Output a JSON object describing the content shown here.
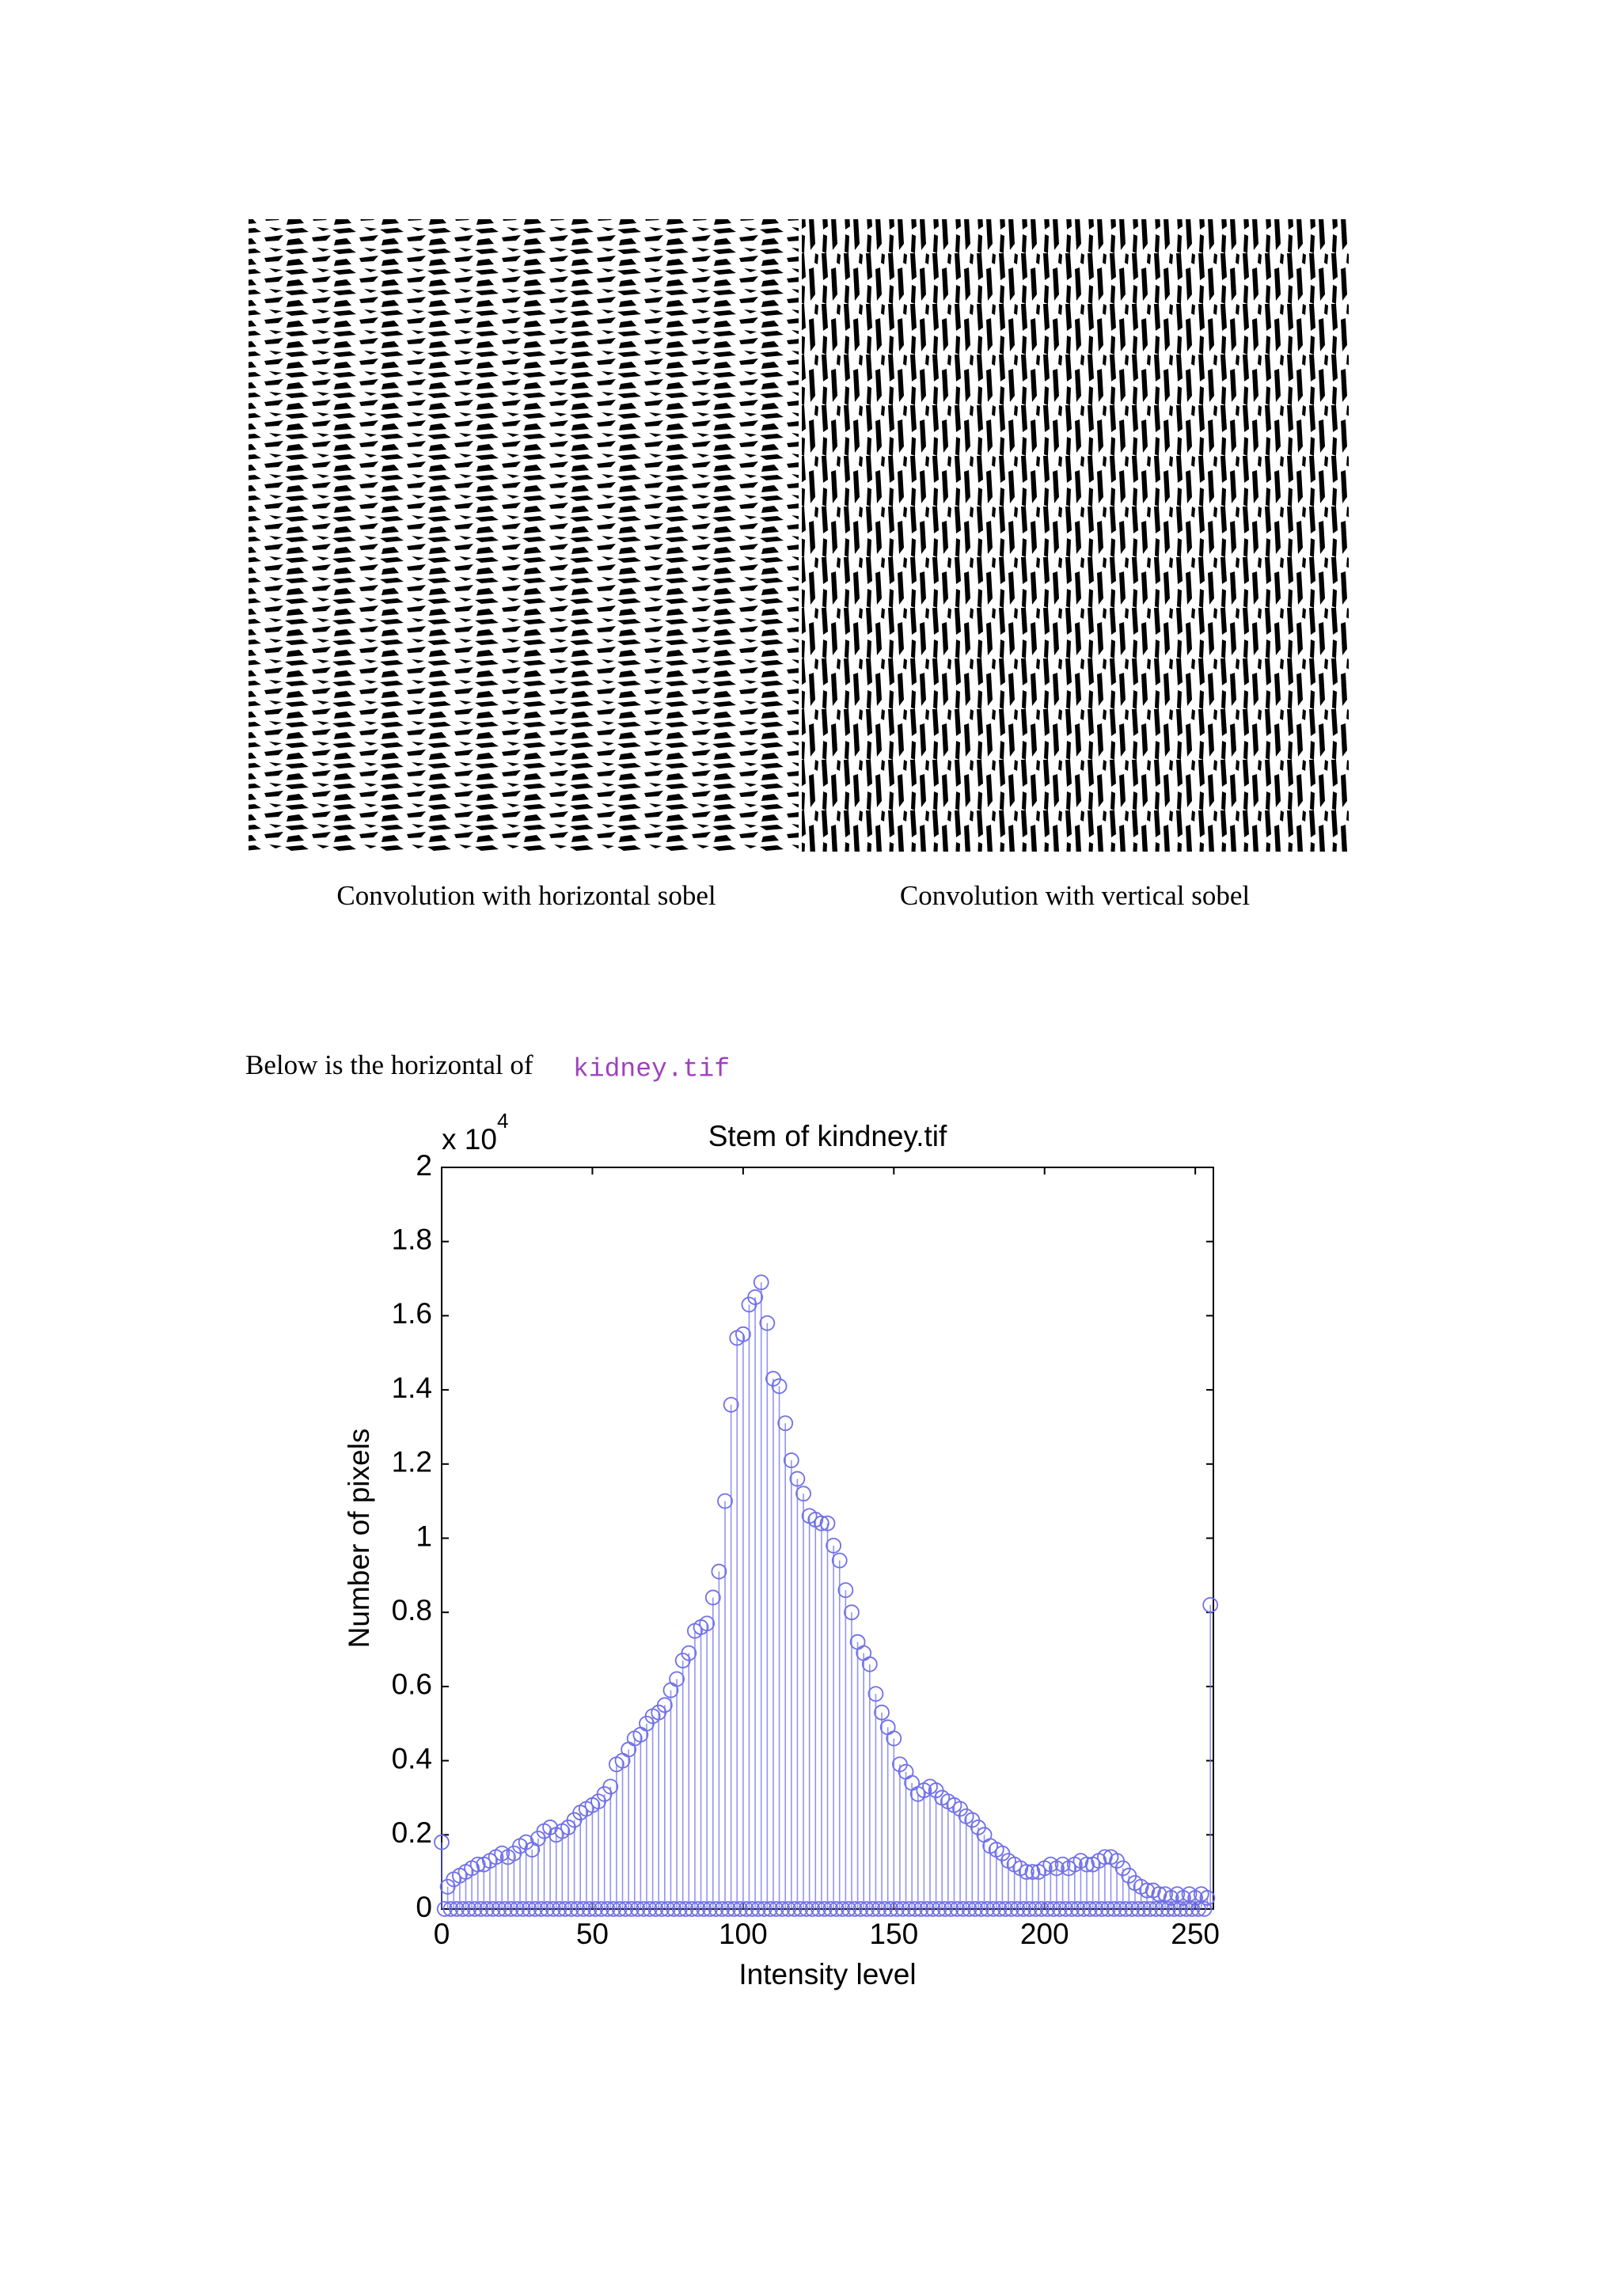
{
  "images": [
    {
      "caption": "Convolution with horizontal sobel"
    },
    {
      "caption": "Convolution with vertical sobel"
    }
  ],
  "text": {
    "intro": "Below is the horizontal of",
    "filename": "kidney.tif"
  },
  "chart_data": {
    "type": "stem",
    "title": "Stem of kindney.tif",
    "x_label": "Intensity level",
    "y_label": "Number of pixels",
    "y_multiplier": "x 10",
    "y_multiplier_exponent": "4",
    "xlim": [
      0,
      256
    ],
    "xticks": [
      0,
      50,
      100,
      150,
      200,
      250
    ],
    "ylim": [
      0,
      2
    ],
    "yticks": [
      0,
      0.2,
      0.4,
      0.6,
      0.8,
      1,
      1.2,
      1.4,
      1.6,
      1.8,
      2
    ],
    "color": "#7070e8",
    "x": [
      0,
      1,
      2,
      3,
      4,
      5,
      6,
      7,
      8,
      9,
      10,
      11,
      12,
      13,
      14,
      15,
      16,
      17,
      18,
      19,
      20,
      21,
      22,
      23,
      24,
      25,
      26,
      27,
      28,
      29,
      30,
      31,
      32,
      33,
      34,
      35,
      36,
      37,
      38,
      39,
      40,
      41,
      42,
      43,
      44,
      45,
      46,
      47,
      48,
      49,
      50,
      51,
      52,
      53,
      54,
      55,
      56,
      57,
      58,
      59,
      60,
      61,
      62,
      63,
      64,
      65,
      66,
      67,
      68,
      69,
      70,
      71,
      72,
      73,
      74,
      75,
      76,
      77,
      78,
      79,
      80,
      81,
      82,
      83,
      84,
      85,
      86,
      87,
      88,
      89,
      90,
      91,
      92,
      93,
      94,
      95,
      96,
      97,
      98,
      99,
      100,
      101,
      102,
      103,
      104,
      105,
      106,
      107,
      108,
      109,
      110,
      111,
      112,
      113,
      114,
      115,
      116,
      117,
      118,
      119,
      120,
      121,
      122,
      123,
      124,
      125,
      126,
      127,
      128,
      129,
      130,
      131,
      132,
      133,
      134,
      135,
      136,
      137,
      138,
      139,
      140,
      141,
      142,
      143,
      144,
      145,
      146,
      147,
      148,
      149,
      150,
      151,
      152,
      153,
      154,
      155,
      156,
      157,
      158,
      159,
      160,
      161,
      162,
      163,
      164,
      165,
      166,
      167,
      168,
      169,
      170,
      171,
      172,
      173,
      174,
      175,
      176,
      177,
      178,
      179,
      180,
      181,
      182,
      183,
      184,
      185,
      186,
      187,
      188,
      189,
      190,
      191,
      192,
      193,
      194,
      195,
      196,
      197,
      198,
      199,
      200,
      201,
      202,
      203,
      204,
      205,
      206,
      207,
      208,
      209,
      210,
      211,
      212,
      213,
      214,
      215,
      216,
      217,
      218,
      219,
      220,
      221,
      222,
      223,
      224,
      225,
      226,
      227,
      228,
      229,
      230,
      231,
      232,
      233,
      234,
      235,
      236,
      237,
      238,
      239,
      240,
      241,
      242,
      243,
      244,
      245,
      246,
      247,
      248,
      249,
      250,
      251,
      252,
      253,
      254,
      255
    ],
    "values": [
      0.18,
      0,
      0.06,
      0,
      0.08,
      0,
      0.09,
      0,
      0.1,
      0,
      0.11,
      0,
      0.12,
      0,
      0.12,
      0,
      0.13,
      0,
      0.14,
      0,
      0.15,
      0,
      0.14,
      0,
      0.15,
      0,
      0.17,
      0,
      0.18,
      0,
      0.16,
      0,
      0.19,
      0,
      0.21,
      0,
      0.22,
      0,
      0.2,
      0,
      0.21,
      0,
      0.22,
      0,
      0.24,
      0,
      0.26,
      0,
      0.27,
      0,
      0.28,
      0,
      0.29,
      0,
      0.31,
      0,
      0.33,
      0,
      0.39,
      0,
      0.4,
      0,
      0.43,
      0,
      0.46,
      0,
      0.47,
      0,
      0.5,
      0,
      0.52,
      0,
      0.53,
      0,
      0.55,
      0,
      0.59,
      0,
      0.62,
      0,
      0.67,
      0,
      0.69,
      0,
      0.75,
      0,
      0.76,
      0,
      0.77,
      0,
      0.84,
      0,
      0.91,
      0,
      1.1,
      0,
      1.36,
      0,
      1.54,
      0,
      1.55,
      0,
      1.63,
      0,
      1.65,
      0,
      1.69,
      0,
      1.58,
      0,
      1.43,
      0,
      1.41,
      0,
      1.31,
      0,
      1.21,
      0,
      1.16,
      0,
      1.12,
      0,
      1.06,
      0,
      1.05,
      0,
      1.04,
      0,
      1.04,
      0,
      0.98,
      0,
      0.94,
      0,
      0.86,
      0,
      0.8,
      0,
      0.72,
      0,
      0.69,
      0,
      0.66,
      0,
      0.58,
      0,
      0.53,
      0,
      0.49,
      0,
      0.46,
      0,
      0.39,
      0,
      0.37,
      0,
      0.34,
      0,
      0.31,
      0,
      0.32,
      0,
      0.33,
      0,
      0.32,
      0,
      0.3,
      0,
      0.29,
      0,
      0.28,
      0,
      0.27,
      0,
      0.25,
      0,
      0.24,
      0,
      0.22,
      0,
      0.2,
      0,
      0.17,
      0,
      0.16,
      0,
      0.15,
      0,
      0.13,
      0,
      0.12,
      0,
      0.11,
      0,
      0.1,
      0,
      0.1,
      0,
      0.1,
      0,
      0.11,
      0,
      0.12,
      0,
      0.11,
      0,
      0.12,
      0,
      0.11,
      0,
      0.12,
      0,
      0.13,
      0,
      0.12,
      0,
      0.12,
      0,
      0.13,
      0,
      0.14,
      0,
      0.14,
      0,
      0.13,
      0,
      0.11,
      0,
      0.09,
      0,
      0.07,
      0,
      0.06,
      0,
      0.05,
      0,
      0.05,
      0,
      0.04,
      0,
      0.04,
      0,
      0.03,
      0,
      0.04,
      0,
      0.03,
      0,
      0.04,
      0,
      0.03,
      0,
      0.04,
      0,
      0.03,
      0.82
    ]
  }
}
